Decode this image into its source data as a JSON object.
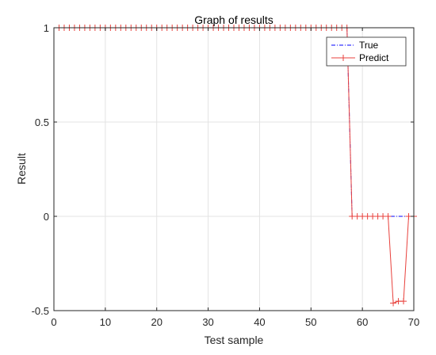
{
  "chart_data": {
    "type": "line",
    "title": "Graph of results",
    "xlabel": "Test sample",
    "ylabel": "Result",
    "xlim": [
      0,
      70
    ],
    "ylim": [
      -0.5,
      1
    ],
    "xticks": [
      0,
      10,
      20,
      30,
      40,
      50,
      60,
      70
    ],
    "xtick_labels": [
      "0",
      "10",
      "20",
      "30",
      "40",
      "50",
      "60",
      "70"
    ],
    "yticks": [
      -0.5,
      0,
      0.5,
      1
    ],
    "ytick_labels": [
      "-0.5",
      "0",
      "0.5",
      "1"
    ],
    "grid": true,
    "legend_position": "top-right",
    "x": [
      1,
      2,
      3,
      4,
      5,
      6,
      7,
      8,
      9,
      10,
      11,
      12,
      13,
      14,
      15,
      16,
      17,
      18,
      19,
      20,
      21,
      22,
      23,
      24,
      25,
      26,
      27,
      28,
      29,
      30,
      31,
      32,
      33,
      34,
      35,
      36,
      37,
      38,
      39,
      40,
      41,
      42,
      43,
      44,
      45,
      46,
      47,
      48,
      49,
      50,
      51,
      52,
      53,
      54,
      55,
      56,
      57,
      58,
      59,
      60,
      61,
      62,
      63,
      64,
      65,
      66,
      67,
      68,
      69,
      70
    ],
    "series": [
      {
        "name": "True",
        "color": "#0000ff",
        "style": "dash-dot",
        "marker": "none",
        "values": [
          1,
          1,
          1,
          1,
          1,
          1,
          1,
          1,
          1,
          1,
          1,
          1,
          1,
          1,
          1,
          1,
          1,
          1,
          1,
          1,
          1,
          1,
          1,
          1,
          1,
          1,
          1,
          1,
          1,
          1,
          1,
          1,
          1,
          1,
          1,
          1,
          1,
          1,
          1,
          1,
          1,
          1,
          1,
          1,
          1,
          1,
          1,
          1,
          1,
          1,
          1,
          1,
          1,
          1,
          1,
          1,
          1,
          0,
          0,
          0,
          0,
          0,
          0,
          0,
          0,
          0,
          0,
          0,
          0,
          0
        ]
      },
      {
        "name": "Predict",
        "color": "#e8413c",
        "style": "solid",
        "marker": "plus",
        "values": [
          1,
          1,
          1,
          1,
          1,
          1,
          1,
          1,
          1,
          1,
          1,
          1,
          1,
          1,
          1,
          1,
          1,
          1,
          1,
          1,
          1,
          1,
          1,
          1,
          1,
          1,
          1,
          1,
          1,
          1,
          1,
          1,
          1,
          1,
          1,
          1,
          1,
          1,
          1,
          1,
          1,
          1,
          1,
          1,
          1,
          1,
          1,
          1,
          1,
          1,
          1,
          1,
          1,
          1,
          1,
          1,
          1,
          0,
          0,
          0,
          0,
          0,
          0,
          0,
          0,
          -0.46,
          -0.45,
          -0.45,
          0,
          0
        ]
      }
    ]
  }
}
